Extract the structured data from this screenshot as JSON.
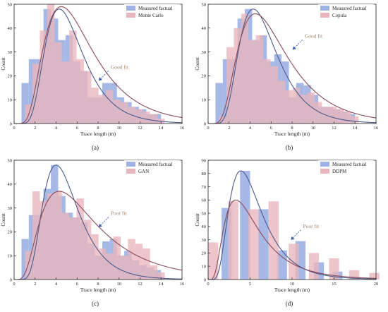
{
  "colors": {
    "measured_bar": "#9eb3e4",
    "simulated_bar": "#e9b6bd",
    "measured_curve": "#4a5a8c",
    "simulated_curve": "#8a4a5c",
    "annotation_text": "#a0846a",
    "arrow": "#3e5fa8",
    "axis": "#222222"
  },
  "chart_data": [
    {
      "type": "bar",
      "panel_label": "(a)",
      "xlabel": "Trace length (m)",
      "ylabel": "Count",
      "xlim": [
        0,
        16
      ],
      "ylim": [
        0,
        50
      ],
      "xticks": [
        0,
        2,
        4,
        6,
        8,
        10,
        12,
        14,
        16
      ],
      "yticks": [
        0,
        10,
        20,
        30,
        40,
        50
      ],
      "bin_width": 0.7,
      "legend_position": "top-right",
      "annotation": {
        "text": "Good fit",
        "x": 9.2,
        "y": 23
      },
      "series": [
        {
          "name": "Measured factual",
          "x": [
            1.05,
            1.75,
            2.45,
            3.15,
            3.85,
            4.55,
            5.25,
            5.95,
            6.65,
            7.35,
            8.05,
            8.75,
            9.45,
            10.15,
            10.85,
            11.55,
            12.25,
            12.95,
            13.65,
            14.35
          ],
          "values": [
            17,
            27,
            27,
            48,
            44,
            35,
            37,
            26,
            22,
            11,
            11,
            17,
            17,
            11,
            9,
            7,
            6,
            4,
            4,
            0
          ]
        },
        {
          "name": "Monte Carlo",
          "x": [
            1.4,
            2.1,
            2.8,
            3.5,
            4.2,
            4.9,
            5.6,
            6.3,
            7.0,
            7.7,
            8.4,
            9.1,
            9.8,
            10.5,
            11.2,
            11.9,
            12.6,
            13.3,
            14.0,
            14.7
          ],
          "values": [
            8,
            25,
            39,
            50,
            34,
            26,
            39,
            27,
            22,
            15,
            12,
            14,
            10,
            9,
            7,
            6,
            5,
            4,
            2,
            0
          ]
        }
      ],
      "curves": [
        {
          "peak_x": 4.3,
          "peak_y": 48,
          "sigma": 0.42
        },
        {
          "peak_x": 4.5,
          "peak_y": 49,
          "sigma": 0.52
        }
      ]
    },
    {
      "type": "bar",
      "panel_label": "(b)",
      "xlabel": "Trace length (m)",
      "ylabel": "Count",
      "xlim": [
        0,
        16
      ],
      "ylim": [
        0,
        50
      ],
      "xticks": [
        0,
        2,
        4,
        6,
        8,
        10,
        12,
        14,
        16
      ],
      "yticks": [
        0,
        10,
        20,
        30,
        40,
        50
      ],
      "bin_width": 0.7,
      "legend_position": "top-right",
      "annotation": {
        "text": "Good fit",
        "x": 9.2,
        "y": 36
      },
      "series": [
        {
          "name": "Measured factual",
          "x": [
            1.05,
            1.75,
            2.45,
            3.15,
            3.85,
            4.55,
            5.25,
            5.95,
            6.65,
            7.35,
            8.05,
            8.75,
            9.45,
            10.15,
            10.85,
            11.55,
            12.25,
            12.95,
            13.65,
            14.35
          ],
          "values": [
            17,
            27,
            27,
            44,
            48,
            35,
            37,
            26,
            29,
            26,
            11,
            17,
            16,
            12,
            7,
            7,
            6,
            5,
            4,
            0
          ]
        },
        {
          "name": "Copula",
          "x": [
            1.4,
            2.1,
            2.8,
            3.5,
            4.2,
            4.9,
            5.6,
            6.3,
            7.0,
            7.7,
            8.4,
            9.1,
            9.8,
            10.5,
            11.2,
            11.9,
            12.6,
            13.3,
            14.0,
            14.7
          ],
          "values": [
            3,
            32,
            40,
            46,
            35,
            37,
            27,
            24,
            18,
            14,
            15,
            12,
            13,
            9,
            7,
            7,
            6,
            5,
            3,
            0
          ]
        }
      ],
      "curves": [
        {
          "peak_x": 4.3,
          "peak_y": 48,
          "sigma": 0.42
        },
        {
          "peak_x": 4.5,
          "peak_y": 46,
          "sigma": 0.52
        }
      ]
    },
    {
      "type": "bar",
      "panel_label": "(c)",
      "xlabel": "Trace length (m)",
      "ylabel": "Count",
      "xlim": [
        0,
        16
      ],
      "ylim": [
        0,
        50
      ],
      "xticks": [
        0,
        2,
        4,
        6,
        8,
        10,
        12,
        14,
        16
      ],
      "yticks": [
        0,
        10,
        20,
        30,
        40,
        50
      ],
      "bin_width": 0.7,
      "legend_position": "top-right",
      "annotation": {
        "text": "Poor fit",
        "x": 9.2,
        "y": 27
      },
      "series": [
        {
          "name": "Measured factual",
          "x": [
            1.05,
            1.75,
            2.45,
            3.15,
            3.85,
            4.55,
            5.25,
            5.95,
            6.65,
            7.35,
            8.05,
            8.75,
            9.45,
            10.15,
            10.85,
            11.55,
            12.25,
            12.95,
            13.65,
            14.35
          ],
          "values": [
            17,
            27,
            27,
            38,
            48,
            35,
            28,
            26,
            24,
            15,
            10,
            16,
            17,
            10,
            12,
            8,
            6,
            5,
            4,
            0
          ]
        },
        {
          "name": "GAN",
          "x": [
            1.4,
            2.1,
            2.8,
            3.5,
            4.2,
            4.9,
            5.6,
            6.3,
            7.0,
            7.7,
            8.4,
            9.1,
            9.8,
            10.5,
            11.2,
            11.9,
            12.6,
            13.3,
            14.0,
            14.7
          ],
          "values": [
            12,
            37,
            33,
            36,
            37,
            28,
            26,
            34,
            25,
            19,
            13,
            11,
            18,
            10,
            17,
            15,
            13,
            6,
            3,
            0
          ]
        }
      ],
      "curves": [
        {
          "peak_x": 4.0,
          "peak_y": 48,
          "sigma": 0.42
        },
        {
          "peak_x": 4.3,
          "peak_y": 37,
          "sigma": 0.62
        }
      ]
    },
    {
      "type": "bar",
      "panel_label": "(d)",
      "xlabel": "Trace length (m)",
      "ylabel": "Count",
      "xlim": [
        0,
        20
      ],
      "ylim": [
        0,
        90
      ],
      "xticks": [
        0,
        5,
        10,
        15,
        20
      ],
      "yticks": [
        0,
        10,
        20,
        30,
        40,
        50,
        60,
        70,
        80,
        90
      ],
      "bin_width": 1.2,
      "legend_position": "top-right",
      "annotation": {
        "text": "Poor fit",
        "x": 11.3,
        "y": 39
      },
      "series": [
        {
          "name": "Measured factual",
          "x": [
            2.2,
            4.4,
            6.6,
            8.8,
            11.0,
            13.2,
            15.4,
            17.6
          ],
          "values": [
            54,
            82,
            53,
            22,
            29,
            13,
            6,
            0
          ]
        },
        {
          "name": "DDPM",
          "x": [
            0.6,
            3.0,
            5.4,
            7.8,
            10.2,
            12.6,
            15.0,
            17.4,
            19.8
          ],
          "values": [
            28,
            59,
            53,
            59,
            27,
            20,
            16,
            7,
            5
          ]
        }
      ],
      "curves": [
        {
          "peak_x": 3.9,
          "peak_y": 82,
          "sigma": 0.5
        },
        {
          "peak_x": 3.3,
          "peak_y": 60,
          "sigma": 0.62
        }
      ]
    }
  ]
}
